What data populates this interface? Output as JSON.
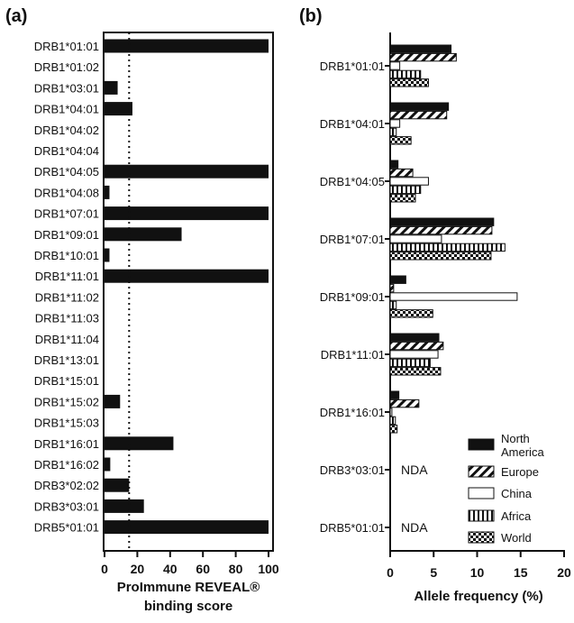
{
  "colors": {
    "ink": "#111111",
    "background": "#ffffff"
  },
  "chart_data": [
    {
      "panel": "(a)",
      "type": "bar",
      "orientation": "horizontal",
      "categories": [
        "DRB1*01:01",
        "DRB1*01:02",
        "DRB1*03:01",
        "DRB1*04:01",
        "DRB1*04:02",
        "DRB1*04:04",
        "DRB1*04:05",
        "DRB1*04:08",
        "DRB1*07:01",
        "DRB1*09:01",
        "DRB1*10:01",
        "DRB1*11:01",
        "DRB1*11:02",
        "DRB1*11:03",
        "DRB1*11:04",
        "DRB1*13:01",
        "DRB1*15:01",
        "DRB1*15:02",
        "DRB1*15:03",
        "DRB1*16:01",
        "DRB1*16:02",
        "DRB3*02:02",
        "DRB3*03:01",
        "DRB5*01:01"
      ],
      "values": [
        100,
        0,
        8,
        17,
        0,
        0,
        100,
        3,
        100,
        47,
        3,
        100,
        0,
        0,
        0,
        0,
        0,
        9.5,
        0,
        42,
        3.5,
        15,
        24,
        100
      ],
      "threshold": 15,
      "threshold_style": "dotted",
      "xlim": [
        0,
        100
      ],
      "xticks": [
        0,
        20,
        40,
        60,
        80,
        100
      ],
      "xlabel": "ProImmune REVEAL® binding score",
      "xlabel_line1": "ProImmune REVEAL®",
      "xlabel_line2": "binding score"
    },
    {
      "panel": "(b)",
      "type": "bar",
      "orientation": "horizontal",
      "categories": [
        "DRB1*01:01",
        "DRB1*04:01",
        "DRB1*04:05",
        "DRB1*07:01",
        "DRB1*09:01",
        "DRB1*11:01",
        "DRB1*16:01",
        "DRB3*03:01",
        "DRB5*01:01"
      ],
      "series": [
        {
          "name": "North America",
          "name_line1": "North",
          "name_line2": "America",
          "pattern": "solid",
          "values": [
            7,
            6.7,
            0.9,
            11.9,
            1.8,
            5.6,
            1.0,
            null,
            null
          ]
        },
        {
          "name": "Europe",
          "pattern": "diagonal",
          "values": [
            7.6,
            6.5,
            2.6,
            11.7,
            0.4,
            6.1,
            3.3,
            null,
            null
          ]
        },
        {
          "name": "China",
          "pattern": "open",
          "values": [
            1.1,
            1.1,
            4.4,
            5.9,
            14.6,
            5.5,
            0.2,
            null,
            null
          ]
        },
        {
          "name": "Africa",
          "pattern": "vertical",
          "values": [
            3.5,
            0.7,
            3.5,
            13.2,
            0.7,
            4.6,
            0.6,
            null,
            null
          ]
        },
        {
          "name": "World",
          "pattern": "checker",
          "values": [
            4.4,
            2.4,
            2.9,
            11.6,
            4.9,
            5.8,
            0.8,
            null,
            null
          ]
        }
      ],
      "annotations": [
        {
          "category": "DRB3*03:01",
          "text": "NDA"
        },
        {
          "category": "DRB5*01:01",
          "text": "NDA"
        }
      ],
      "xlim": [
        0,
        20
      ],
      "xticks": [
        0,
        5,
        10,
        15,
        20
      ],
      "xlabel": "Allele frequency (%)",
      "legend_position": "bottom-right"
    }
  ]
}
